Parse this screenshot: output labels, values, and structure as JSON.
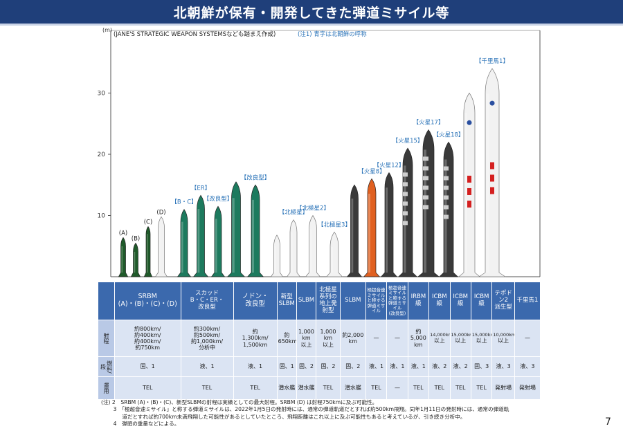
{
  "header": {
    "title": "北朝鮮が保有・開発してきた弾道ミサイル等"
  },
  "chart": {
    "axis_unit": "(m)",
    "source_note": "(JANE'S STRATEGIC WEAPON SYSTEMSなども踏まえ作成)",
    "color_note": "(注1) 青字は北朝鮮の呼称",
    "ticks": [
      "10",
      "20",
      "30"
    ],
    "colors": {
      "srbm": "#1f5a2a",
      "scud": "#1d7a5e",
      "white": "#f2f2f2",
      "gray": "#8a8a8a",
      "dark": "#3a3a3a",
      "orange": "#e06020",
      "axis": "#555555",
      "label_blue": "#2a73b8"
    },
    "missiles": [
      {
        "label": "(A)",
        "height_m": 6.4,
        "color": "srbm"
      },
      {
        "label": "(B)",
        "height_m": 5.5,
        "color": "srbm"
      },
      {
        "label": "(C)",
        "height_m": 8.2,
        "color": "srbm"
      },
      {
        "label": "(D)",
        "height_m": 9.8,
        "color": "white"
      },
      {
        "label": "【B・C】",
        "height_m": 11.0,
        "color": "scud"
      },
      {
        "label": "【ER】",
        "height_m": 13.3,
        "color": "scud"
      },
      {
        "label": "【改良型】",
        "height_m": 11.5,
        "color": "scud"
      },
      {
        "label": "",
        "height_m": 15.5,
        "color": "scud"
      },
      {
        "label": "【改良型】",
        "height_m": 15.0,
        "color": "scud"
      },
      {
        "label": "",
        "height_m": 6.8,
        "color": "white"
      },
      {
        "label": "【北極星】",
        "height_m": 9.3,
        "color": "white"
      },
      {
        "label": "【北極星2】",
        "height_m": 10.0,
        "color": "white"
      },
      {
        "label": "【北極星3】",
        "height_m": 7.3,
        "color": "white"
      },
      {
        "label": "",
        "height_m": 15.0,
        "color": "dark"
      },
      {
        "label": "【火星8】",
        "height_m": 16.0,
        "color": "orange"
      },
      {
        "label": "【火星12】",
        "height_m": 17.0,
        "color": "dark"
      },
      {
        "label": "【火星15】",
        "height_m": 21.0,
        "color": "dark"
      },
      {
        "label": "【火星17】",
        "height_m": 24.0,
        "color": "dark"
      },
      {
        "label": "【火星18】",
        "height_m": 22.0,
        "color": "dark"
      },
      {
        "label": "",
        "height_m": 30.0,
        "color": "white"
      },
      {
        "label": "【千里馬1】",
        "height_m": 34.0,
        "color": "white"
      }
    ]
  },
  "table": {
    "row_headers": [
      "射程",
      "燃料/段",
      "運用"
    ],
    "columns": [
      {
        "header": [
          "SRBM",
          "(A)・(B)・(C)・(D)"
        ],
        "range": [
          "約800km/",
          "約400km/",
          "約400km/",
          "約750km"
        ],
        "fuel": "固、1",
        "ops": "TEL"
      },
      {
        "header": [
          "スカッド",
          "B・C・ER・",
          "改良型"
        ],
        "range": [
          "約300km/",
          "約500km/",
          "約1,000km/",
          "分析中"
        ],
        "fuel": "液、1",
        "ops": "TEL"
      },
      {
        "header": [
          "ノドン・",
          "改良型"
        ],
        "range": [
          "約",
          "1,300km/",
          "1,500km"
        ],
        "fuel": "液、1",
        "ops": "TEL"
      },
      {
        "header": [
          "新型",
          "SLBM"
        ],
        "range": [
          "約",
          "650km"
        ],
        "fuel": "固、1",
        "ops": "潜水艦"
      },
      {
        "header": [
          "SLBM"
        ],
        "range": [
          "1,000",
          "km",
          "以上"
        ],
        "fuel": "固、2",
        "ops": "潜水艦"
      },
      {
        "header": [
          "北極星",
          "系列の",
          "地上発射型"
        ],
        "range": [
          "1,000",
          "km",
          "以上"
        ],
        "fuel": "固、2",
        "ops": "TEL"
      },
      {
        "header": [
          "SLBM"
        ],
        "range": [
          "約2,000",
          "km"
        ],
        "fuel": "固、2",
        "ops": "潜水艦"
      },
      {
        "header": [
          "極超音速",
          "ミサイル",
          "と称する",
          "弾道ミサイル"
        ],
        "range": [
          "—"
        ],
        "fuel": "液、1",
        "ops": "TEL"
      },
      {
        "header": [
          "極超音速",
          "ミサイル",
          "と称する",
          "弾道ミサイル",
          "(改良型)"
        ],
        "range": [
          "—"
        ],
        "fuel": "液、1",
        "ops": "—"
      },
      {
        "header": [
          "IRBM級"
        ],
        "range": [
          "約",
          "5,000",
          "km"
        ],
        "fuel": "液、1",
        "ops": "TEL"
      },
      {
        "header": [
          "ICBM級"
        ],
        "range": [
          "14,000km",
          "以上"
        ],
        "fuel": "液、2",
        "ops": "TEL"
      },
      {
        "header": [
          "ICBM級"
        ],
        "range": [
          "15,000km",
          "以上"
        ],
        "fuel": "液、2",
        "ops": "TEL"
      },
      {
        "header": [
          "ICBM級"
        ],
        "range": [
          "15,000km",
          "以上"
        ],
        "fuel": "固、3",
        "ops": "TEL"
      },
      {
        "header": [
          "テポドン2",
          "派生型"
        ],
        "range": [
          "10,000km",
          "以上"
        ],
        "fuel": "液、3",
        "ops": "発射場"
      },
      {
        "header": [
          "千里馬1"
        ],
        "range": [
          "—"
        ],
        "fuel": "液、3",
        "ops": "発射場"
      }
    ]
  },
  "notes": [
    "(注) 2　SRBM (A)・(B)・(C)、新型SLBMの射程は実績としての最大射程。SRBM (D) は射程750kmに及ぶ可能性。",
    "　　 3　「極超音速ミサイル」と称する弾道ミサイルは、2022年1月5日の発射時には、通常の弾道軌道だとすれば約500km飛翔。同年1月11日の発射時には、通常の弾道軌",
    "　　　　道だとすれば約700km未満飛翔した可能性があるとしていたところ、飛翔距離はこれ以上に及ぶ可能性もあると考えているが、引き続き分析中。",
    "　　 4　弾頭の重量などによる。"
  ],
  "page_number": "7"
}
